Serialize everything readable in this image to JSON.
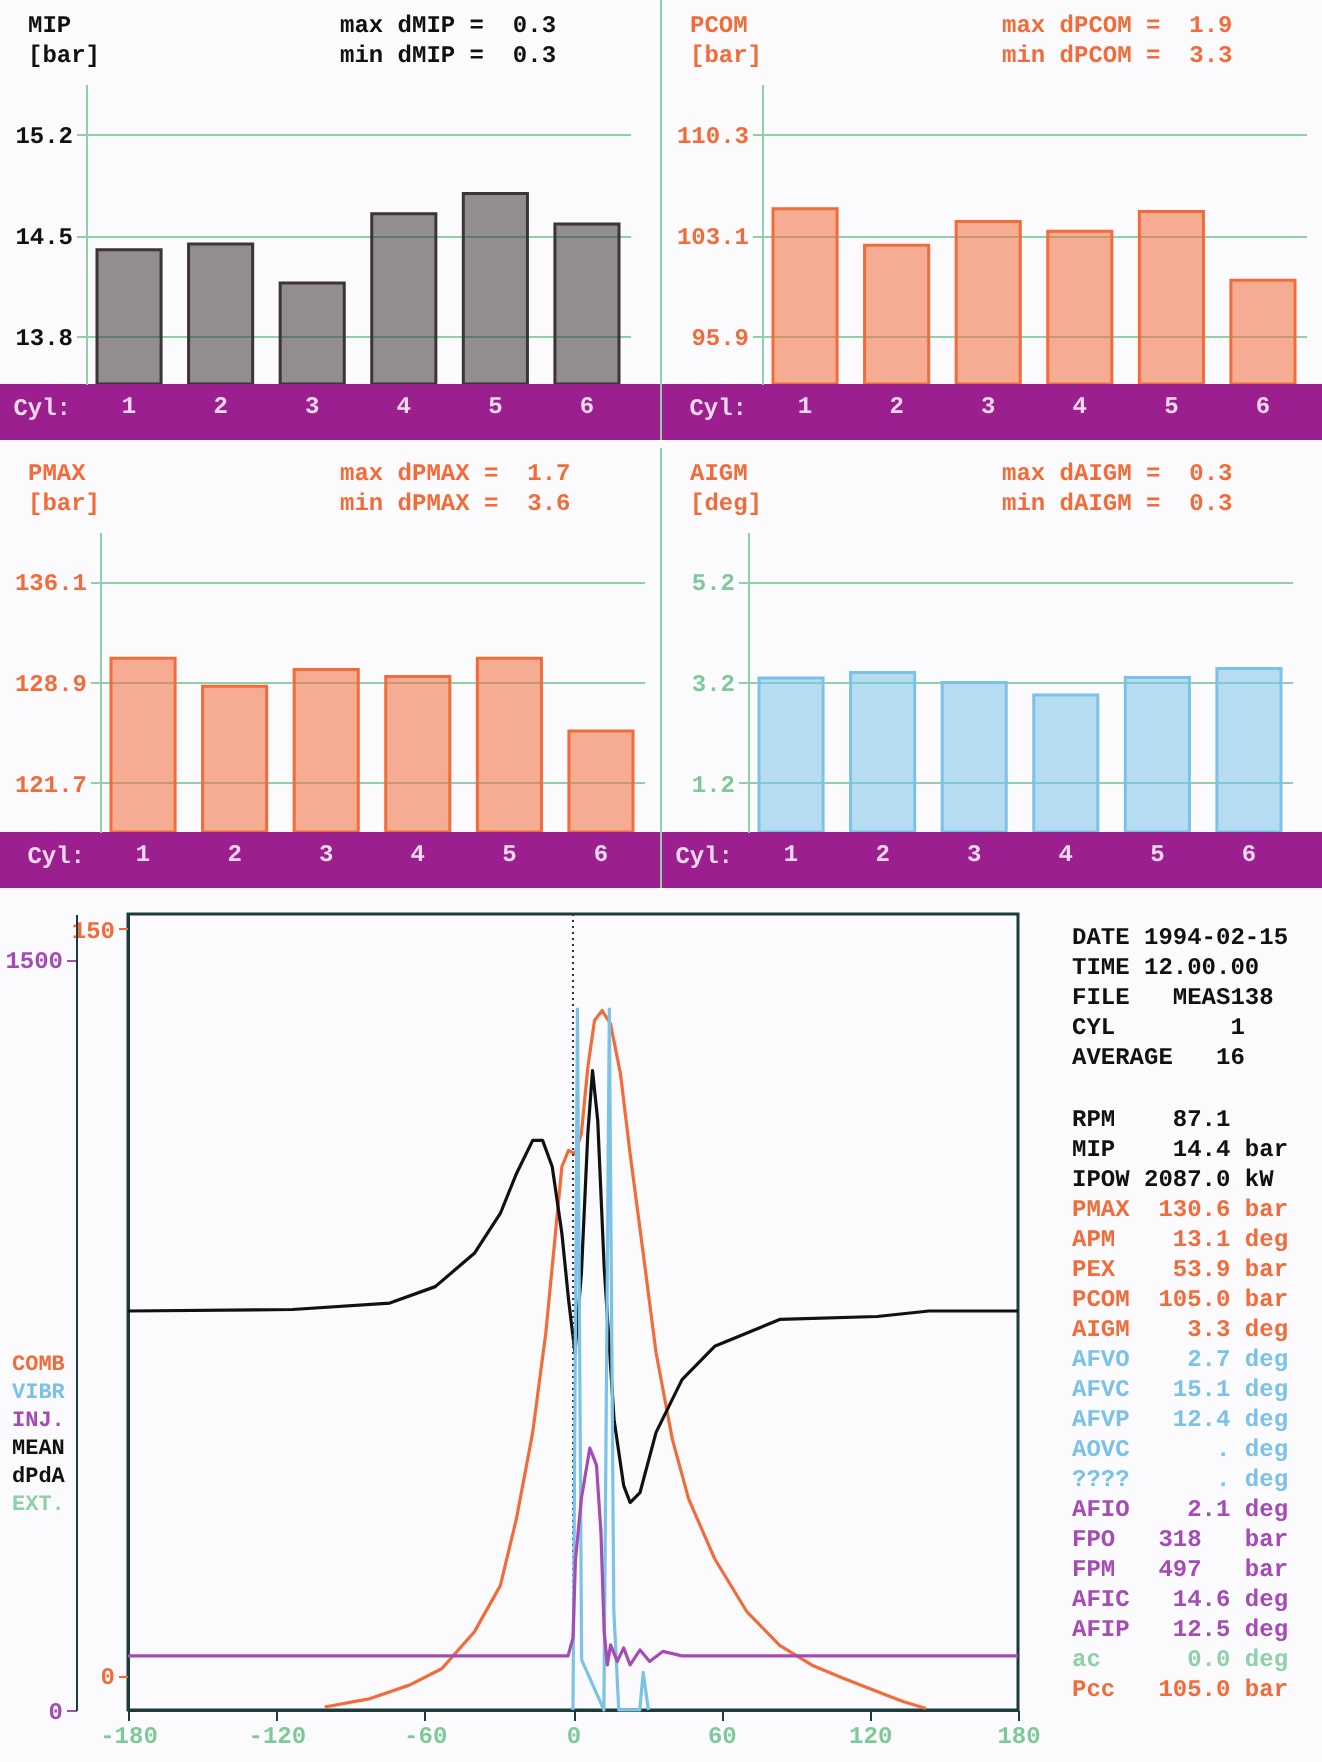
{
  "chart_data": [
    {
      "type": "bar",
      "title": "MIP",
      "ylabel": "[bar]",
      "xlabel": "Cyl:",
      "annotations": [
        "max dMIP =  0.3",
        "min dMIP =  0.3"
      ],
      "categories": [
        "1",
        "2",
        "3",
        "4",
        "5",
        "6"
      ],
      "values": [
        14.4,
        14.44,
        14.17,
        14.65,
        14.79,
        14.58
      ],
      "color": "#3d3535",
      "ylim": [
        13.47,
        15.55
      ],
      "yticks": [
        13.8,
        14.5,
        15.2
      ],
      "grid": "y"
    },
    {
      "type": "bar",
      "title": "PCOM",
      "ylabel": "[bar]",
      "xlabel": "Cyl:",
      "annotations": [
        "max dPCOM =  1.9",
        "min dPCOM =  3.3"
      ],
      "categories": [
        "1",
        "2",
        "3",
        "4",
        "5",
        "6"
      ],
      "values": [
        105.0,
        102.4,
        104.1,
        103.4,
        104.8,
        99.9
      ],
      "color": "#f26b3a",
      "ylim": [
        92.5,
        113.9
      ],
      "yticks": [
        95.9,
        103.1,
        110.3
      ],
      "grid": "y"
    },
    {
      "type": "bar",
      "title": "PMAX",
      "ylabel": "[bar]",
      "xlabel": "Cyl:",
      "annotations": [
        "max dPMAX =  1.7",
        "min dPMAX =  3.6"
      ],
      "categories": [
        "1",
        "2",
        "3",
        "4",
        "5",
        "6"
      ],
      "values": [
        130.6,
        128.6,
        129.8,
        129.3,
        130.6,
        125.4
      ],
      "color": "#f26b3a",
      "ylim": [
        118.2,
        139.6
      ],
      "yticks": [
        121.7,
        128.9,
        136.1
      ],
      "grid": "y"
    },
    {
      "type": "bar",
      "title": "AIGM",
      "ylabel": "[deg]",
      "xlabel": "Cyl:",
      "annotations": [
        "max dAIGM =  0.3",
        "min dAIGM =  0.3"
      ],
      "categories": [
        "1",
        "2",
        "3",
        "4",
        "5",
        "6"
      ],
      "values": [
        3.28,
        3.39,
        3.19,
        2.94,
        3.29,
        3.47
      ],
      "color": "#7cc2e6",
      "ylim": [
        0.22,
        6.18
      ],
      "yticks": [
        1.2,
        3.2,
        5.2
      ],
      "grid": "y"
    },
    {
      "type": "line",
      "legend": "left",
      "annotations": [
        "EXT."
      ],
      "xlim": [
        -180,
        180
      ],
      "xticks": [
        -180,
        -120,
        -60,
        0,
        60,
        120,
        180
      ],
      "ylim": [
        -7,
        153
      ],
      "yticks": [
        0,
        150
      ],
      "y2lim": [
        0,
        1590
      ],
      "y2ticks": [
        0,
        1500
      ],
      "ref_lines": [
        {
          "axis": "x",
          "value": 0,
          "color": "#333333",
          "line_style": "dotted"
        }
      ],
      "series": [
        {
          "name": "COMB",
          "color": "#f26b3a",
          "x": [
            -100.4,
            -82,
            -66.2,
            -53.1,
            -39.9,
            -29.4,
            -22.9,
            -16.3,
            -11.0,
            -7.1,
            -4.5,
            -1.8,
            0.8,
            3.4,
            6.0,
            8.7,
            11.8,
            15.2,
            19.2,
            23.1,
            28.4,
            33.6,
            40.2,
            46.8,
            57.3,
            70.4,
            83.6,
            96.7,
            109.8,
            123,
            133.5,
            142.7
          ],
          "values": [
            -6.4,
            -4.7,
            -2.0,
            1.3,
            8.7,
            18.0,
            31.4,
            48.8,
            68.8,
            88.8,
            102.2,
            105.5,
            104.8,
            108.9,
            122.2,
            131.6,
            133.6,
            130.9,
            120.9,
            104.8,
            84.8,
            64.8,
            47.4,
            35.4,
            23.4,
            12.7,
            6.0,
            2.0,
            -0.7,
            -3.3,
            -5.3,
            -6.7
          ]
        },
        {
          "name": "VIBR",
          "color": "#7cc2e6",
          "axis": "y2",
          "x": [
            0,
            1.8,
            3.5,
            12.5,
            14.7,
            16.5,
            18.5,
            27,
            28.4,
            30.5
          ],
          "values": [
            0,
            1400,
            100,
            0,
            1400,
            200,
            0,
            0,
            75,
            0
          ]
        },
        {
          "name": "INJ.",
          "color": "#a44cb4",
          "axis": "y2",
          "x": [
            -180,
            -2,
            0,
            1,
            3.4,
            6.8,
            9.5,
            11.3,
            12.6,
            13.9,
            15.2,
            17.9,
            20.5,
            23.1,
            27.1,
            31,
            36.3,
            44.1,
            180
          ],
          "values": [
            108,
            108,
            144,
            300,
            423,
            523,
            489,
            356,
            157,
            90,
            130,
            97,
            124,
            90,
            120,
            97,
            117,
            108,
            108
          ]
        },
        {
          "name": "MEAN dPdA",
          "color": "#111111",
          "x": [
            -180,
            -113.5,
            -74.1,
            -55.7,
            -39.9,
            -29.4,
            -22.9,
            -16.3,
            -12.3,
            -8.4,
            -4.5,
            -1.8,
            -0.5,
            0.8,
            3.4,
            6.0,
            7.9,
            10.0,
            12.6,
            16.6,
            20.5,
            23.1,
            27.1,
            33.6,
            44.1,
            57.3,
            83.6,
            123,
            144,
            180
          ],
          "values": [
            73.2,
            73.5,
            74.8,
            78.1,
            84.8,
            92.8,
            100.8,
            107.5,
            107.5,
            102.2,
            88.8,
            75.5,
            70.1,
            64.8,
            80.8,
            108.9,
            121.5,
            111.5,
            82.1,
            51.4,
            38.1,
            34.7,
            36.7,
            48.8,
            59.4,
            66.1,
            71.5,
            72.1,
            73.2,
            73.2
          ]
        }
      ]
    },
    {
      "type": "other",
      "annotations": [
        "DATE 1994-02-15",
        "TIME 12.00.00",
        "FILE   MEAS138",
        "CYL        1",
        "AVERAGE   16",
        "RPM    87.1",
        "MIP    14.4 bar",
        "IPOW 2087.0 kW",
        "PMAX  130.6 bar",
        "APM    13.1 deg",
        "PEX    53.9 bar",
        "PCOM  105.0 bar",
        "AIGM    3.3 deg",
        "AFVO    2.7 deg",
        "AFVC   15.1 deg",
        "AFVP   12.4 deg",
        "AOVC      . deg",
        "????      . deg",
        "AFIO    2.1 deg",
        "FPO   318   bar",
        "FPM   497   bar",
        "AFIC   14.6 deg",
        "AFIP   12.5 deg",
        "ac      0.0 deg",
        "Pcc   105.0 bar"
      ]
    }
  ]
}
